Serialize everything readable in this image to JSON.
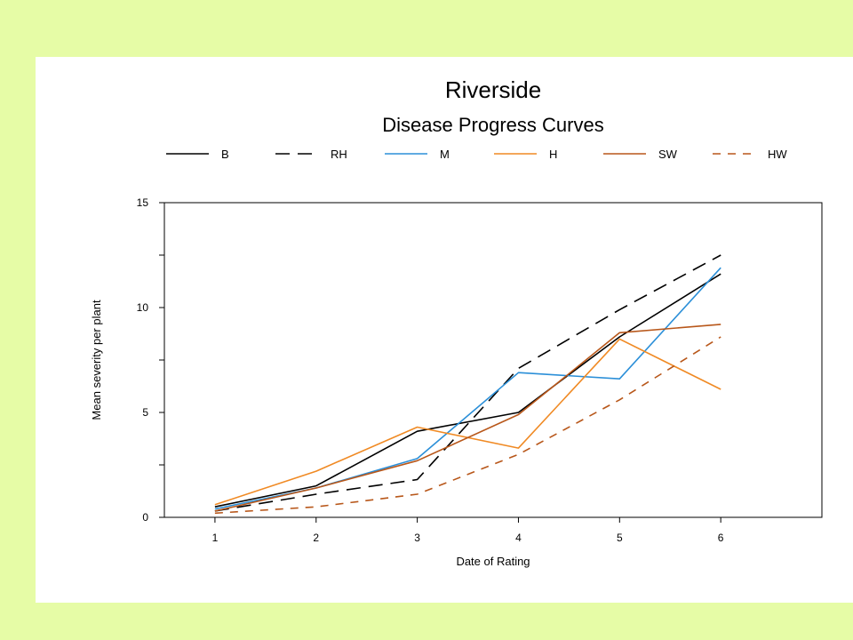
{
  "chart_data": {
    "type": "line",
    "title": "Riverside",
    "subtitle": "Disease Progress Curves",
    "xlabel": "Date of Rating",
    "ylabel": "Mean severity per plant",
    "x": [
      1,
      2,
      3,
      4,
      5,
      6
    ],
    "x_tick_labels": [
      "1",
      "2",
      "3",
      "4",
      "5",
      "6"
    ],
    "y_tick_labels": [
      "0",
      "5",
      "10",
      "15"
    ],
    "xlim": [
      0.5,
      7.0
    ],
    "ylim": [
      0,
      15
    ],
    "grid": false,
    "legend_position": "top",
    "series": [
      {
        "name": "B",
        "color": "#000000",
        "dash": "solid",
        "values": [
          0.5,
          1.5,
          4.1,
          5.0,
          8.6,
          11.6
        ]
      },
      {
        "name": "RH",
        "color": "#000000",
        "dash": "long",
        "values": [
          0.3,
          1.1,
          1.8,
          7.1,
          9.9,
          12.5
        ]
      },
      {
        "name": "M",
        "color": "#2b8fd8",
        "dash": "solid",
        "values": [
          0.4,
          1.4,
          2.8,
          6.9,
          6.6,
          11.9
        ]
      },
      {
        "name": "H",
        "color": "#f08a24",
        "dash": "solid",
        "values": [
          0.6,
          2.2,
          4.3,
          3.3,
          8.5,
          6.1
        ]
      },
      {
        "name": "SW",
        "color": "#b8571a",
        "dash": "solid",
        "values": [
          0.3,
          1.4,
          2.7,
          4.9,
          8.8,
          9.2
        ]
      },
      {
        "name": "HW",
        "color": "#b8571a",
        "dash": "short",
        "values": [
          0.2,
          0.5,
          1.1,
          3.0,
          5.6,
          8.6
        ]
      }
    ]
  }
}
